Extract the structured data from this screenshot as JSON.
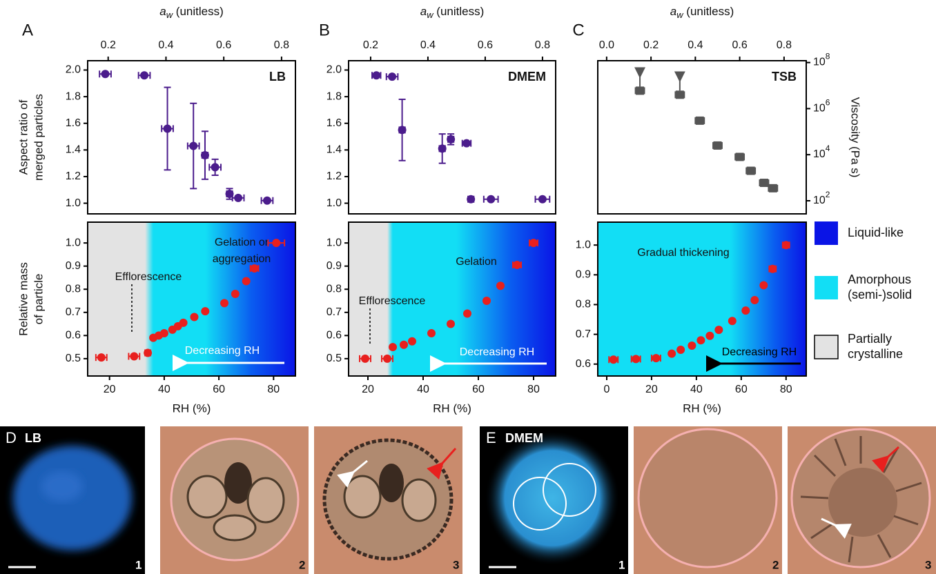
{
  "chart_data": [
    {
      "type": "scatter",
      "panel": "A",
      "inset_title": "LB",
      "x_axis": "top",
      "x_label": [
        "a",
        "w",
        " (unitless)"
      ],
      "y_label": [
        "Aspect ratio of",
        "merged particles"
      ],
      "xlim": [
        0.129,
        0.848
      ],
      "xticks": [
        0.2,
        0.4,
        0.6,
        0.8
      ],
      "ylim": [
        0.92,
        2.07
      ],
      "yticks": [
        {
          "value": 1,
          "label": "1.0"
        },
        1.2,
        1.4,
        1.6,
        1.8,
        {
          "value": 2,
          "label": "2.0"
        }
      ],
      "color": "#4b1c8c",
      "x": [
        0.19,
        0.325,
        0.405,
        0.495,
        0.535,
        0.57,
        0.62,
        0.65,
        0.75
      ],
      "values": [
        1.97,
        1.96,
        1.56,
        1.43,
        1.36,
        1.27,
        1.07,
        1.04,
        1.02
      ],
      "xerr": [
        0.02,
        0.02,
        0.02,
        0.02,
        0.01,
        0.02,
        0.01,
        0.02,
        0.02
      ],
      "yerr": [
        null,
        null,
        0.31,
        0.32,
        0.18,
        0.06,
        0.04,
        null,
        null
      ]
    },
    {
      "type": "scatter",
      "panel": "B",
      "inset_title": "DMEM",
      "x_axis": "top",
      "x_label": [
        "a",
        "w",
        " (unitless)"
      ],
      "xlim": [
        0.123,
        0.846
      ],
      "xticks": [
        0.2,
        0.4,
        0.6,
        0.8
      ],
      "ylim": [
        0.92,
        2.07
      ],
      "yticks": [
        {
          "value": 1,
          "label": "1.0"
        },
        1.2,
        1.4,
        1.6,
        1.8,
        {
          "value": 2,
          "label": "2.0"
        }
      ],
      "color": "#4b1c8c",
      "x": [
        0.22,
        0.275,
        0.31,
        0.45,
        0.48,
        0.535,
        0.55,
        0.62,
        0.8
      ],
      "values": [
        1.96,
        1.95,
        1.55,
        1.41,
        1.48,
        1.45,
        1.03,
        1.03,
        1.03
      ],
      "xerr": [
        0.015,
        0.02,
        0.01,
        0.01,
        0.01,
        0.015,
        0.01,
        0.025,
        0.025
      ],
      "yerr": [
        null,
        null,
        0.23,
        0.11,
        0.04,
        null,
        null,
        null,
        null
      ]
    },
    {
      "type": "scatter",
      "panel": "C",
      "inset_title": "TSB",
      "x_axis": "top",
      "axis": "y2",
      "log_scale": true,
      "x_label": [
        "a",
        "w",
        " (unitless)"
      ],
      "y2_label": [
        "Viscosity (Pa s)"
      ],
      "xlim": [
        -0.04,
        0.9
      ],
      "xticks": [
        {
          "value": 0,
          "label": "0.0"
        },
        0.2,
        0.4,
        0.6,
        0.8
      ],
      "y2lim": [
        27,
        120000000
      ],
      "y2ticks": [
        {
          "value": 100,
          "label": [
            "10",
            "2"
          ]
        },
        {
          "value": 10000,
          "label": [
            "10",
            "4"
          ]
        },
        {
          "value": 1000000,
          "label": [
            "10",
            "6"
          ]
        },
        {
          "value": 100000000,
          "label": [
            "10",
            "8"
          ]
        }
      ],
      "color": "#555555",
      "x": [
        0.15,
        0.33,
        0.42,
        0.5,
        0.6,
        0.65,
        0.71,
        0.75
      ],
      "values": [
        6000000,
        4000000,
        300000,
        25000,
        8000,
        2000,
        600,
        350
      ],
      "xerr": [
        0.02,
        0.02,
        0.02,
        0.02,
        0.02,
        0.02,
        0.02,
        0.02
      ],
      "lower_limit": [
        true,
        true,
        false,
        false,
        false,
        false,
        false,
        false
      ]
    },
    {
      "type": "scatter",
      "x_axis": "bottom",
      "x_label": "RH (%)",
      "y_label": [
        "Relative mass",
        "of particle"
      ],
      "xlim": [
        12,
        88
      ],
      "xticks": [
        20,
        40,
        60,
        80
      ],
      "ylim": [
        0.425,
        1.09
      ],
      "yticks": [
        0.5,
        0.6,
        0.7,
        0.8,
        0.9,
        {
          "value": 1,
          "label": "1.0"
        }
      ],
      "color": "#e8201e",
      "background": [
        {
          "x": 12,
          "color": "#e3e3e3"
        },
        {
          "x": 33,
          "color": "#e3e3e3"
        },
        {
          "x": 36,
          "color": "#12def5"
        },
        {
          "x": 55,
          "color": "#12def5"
        },
        {
          "x": 72,
          "color": "#0a5cf0"
        },
        {
          "x": 88,
          "color": "#0a14e6"
        }
      ],
      "annotations": [
        [
          "Gelation or",
          "aggregation"
        ],
        [
          "Efflorescence"
        ],
        [
          "Decreasing RH"
        ]
      ],
      "x": [
        17,
        29,
        34,
        36,
        38,
        40,
        43,
        45,
        47,
        51,
        55,
        62,
        66,
        70,
        73,
        81
      ],
      "values": [
        0.505,
        0.51,
        0.525,
        0.59,
        0.6,
        0.61,
        0.625,
        0.64,
        0.655,
        0.68,
        0.705,
        0.74,
        0.78,
        0.835,
        0.89,
        1.0
      ],
      "xerr": [
        2,
        2,
        1,
        null,
        null,
        null,
        null,
        null,
        null,
        null,
        null,
        null,
        null,
        null,
        1.5,
        3
      ]
    },
    {
      "type": "scatter",
      "x_axis": "bottom",
      "x_label": "RH (%)",
      "xlim": [
        13,
        88
      ],
      "xticks": [
        20,
        40,
        60,
        80
      ],
      "ylim": [
        0.425,
        1.09
      ],
      "yticks": [
        0.5,
        0.6,
        0.7,
        0.8,
        0.9,
        {
          "value": 1,
          "label": "1.0"
        }
      ],
      "color": "#e8201e",
      "background": [
        {
          "x": 13,
          "color": "#e3e3e3"
        },
        {
          "x": 27,
          "color": "#e3e3e3"
        },
        {
          "x": 29,
          "color": "#12def5"
        },
        {
          "x": 52,
          "color": "#12def5"
        },
        {
          "x": 72,
          "color": "#0a5cf0"
        },
        {
          "x": 88,
          "color": "#0a14e6"
        }
      ],
      "annotations": [
        [
          "Gelation"
        ],
        [
          "Efflorescence"
        ],
        [
          "Decreasing RH"
        ]
      ],
      "x": [
        19,
        27,
        29,
        33,
        36,
        43,
        50,
        56,
        63,
        68,
        74,
        80
      ],
      "values": [
        0.5,
        0.5,
        0.55,
        0.56,
        0.575,
        0.61,
        0.65,
        0.695,
        0.75,
        0.815,
        0.905,
        1.0
      ],
      "xerr": [
        2,
        2,
        null,
        null,
        null,
        null,
        null,
        null,
        null,
        null,
        1.5,
        1.5
      ]
    },
    {
      "type": "scatter",
      "x_axis": "bottom",
      "x_label": "RH (%)",
      "xlim": [
        -4,
        89
      ],
      "xticks": [
        0,
        20,
        40,
        60,
        80
      ],
      "ylim": [
        0.56,
        1.077
      ],
      "yticks": [
        0.6,
        0.7,
        0.8,
        0.9,
        {
          "value": 1,
          "label": "1.0"
        }
      ],
      "color": "#e8201e",
      "background": [
        {
          "x": -4,
          "color": "#12def5"
        },
        {
          "x": 55,
          "color": "#12def5"
        },
        {
          "x": 75,
          "color": "#0a5cf0"
        },
        {
          "x": 89,
          "color": "#0a14e6"
        }
      ],
      "annotations": [
        [
          "Gradual thickening"
        ],
        [
          "Decreasing RH"
        ]
      ],
      "x": [
        3,
        13,
        22,
        29,
        33,
        38,
        42,
        46,
        50,
        56,
        62,
        66,
        70,
        74,
        80
      ],
      "values": [
        0.615,
        0.617,
        0.62,
        0.635,
        0.648,
        0.662,
        0.68,
        0.695,
        0.715,
        0.745,
        0.78,
        0.815,
        0.865,
        0.92,
        1.0
      ],
      "xerr": [
        2,
        2,
        2,
        null,
        null,
        null,
        null,
        null,
        null,
        null,
        null,
        null,
        null,
        1.5,
        1.5
      ]
    }
  ],
  "legend": [
    {
      "label": [
        "Liquid-like"
      ],
      "color": "#0a14e6"
    },
    {
      "label": [
        "Amorphous",
        "(semi-)solid"
      ],
      "color": "#12def5"
    },
    {
      "label": [
        "Partially",
        "crystalline"
      ],
      "color": "#e3e3e3"
    }
  ],
  "micrographs": [
    {
      "panel": "D",
      "title": "LB",
      "frames": [
        "1",
        "2",
        "3"
      ]
    },
    {
      "panel": "E",
      "title": "DMEM",
      "frames": [
        "1",
        "2",
        "3"
      ]
    }
  ]
}
